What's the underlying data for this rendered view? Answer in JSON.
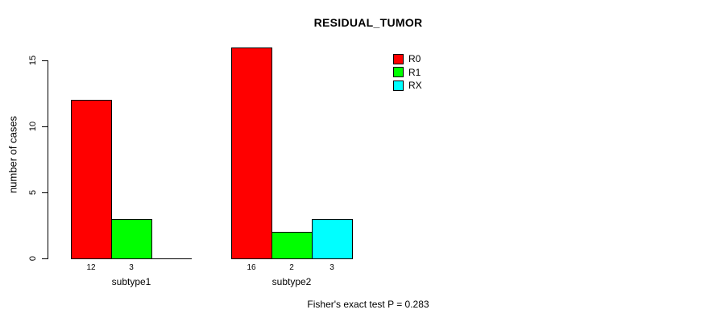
{
  "page": {
    "background": "#ffffff"
  },
  "chart_data": {
    "type": "bar",
    "title": "RESIDUAL_TUMOR",
    "xlabel": "",
    "ylabel": "number of cases",
    "categories": [
      "subtype1",
      "subtype2"
    ],
    "series": [
      {
        "name": "R0",
        "color": "#ff0000",
        "values": [
          12,
          16
        ]
      },
      {
        "name": "R1",
        "color": "#00ff00",
        "values": [
          3,
          2
        ]
      },
      {
        "name": "RX",
        "color": "#00ffff",
        "values": [
          0,
          3
        ]
      }
    ],
    "bar_value_labels": [
      [
        "12",
        "3",
        ""
      ],
      [
        "16",
        "2",
        "3"
      ]
    ],
    "y_ticks": [
      0,
      5,
      10,
      15
    ],
    "ylim": [
      0,
      16.4
    ],
    "grid": false,
    "legend_position": "top-right",
    "legend_entries": [
      "R0",
      "R1",
      "RX"
    ],
    "footnote": "Fisher's exact test P = 0.283"
  }
}
